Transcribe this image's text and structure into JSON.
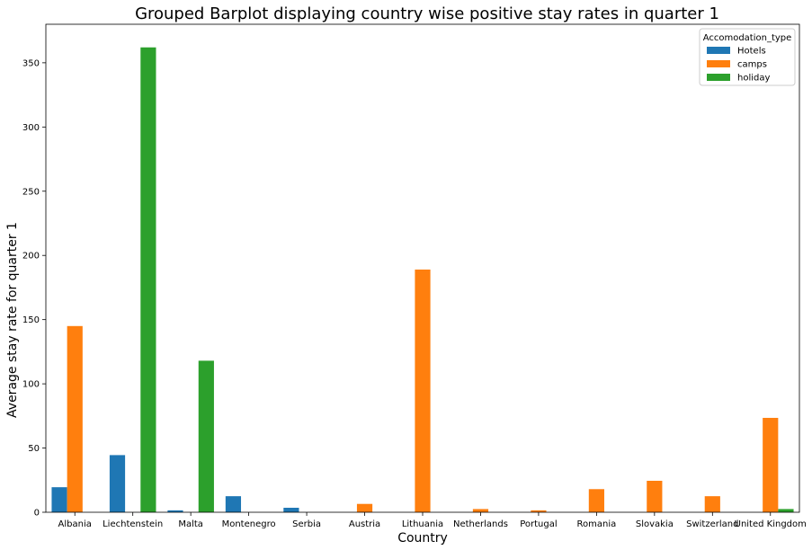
{
  "chart_data": {
    "type": "bar",
    "title": "Grouped Barplot displaying country wise positive stay rates in quarter 1",
    "xlabel": "Country",
    "ylabel": "Average stay rate for quarter 1",
    "ylim": [
      0,
      380
    ],
    "yticks": [
      0,
      50,
      100,
      150,
      200,
      250,
      300,
      350
    ],
    "grid": false,
    "legend": {
      "title": "Accomodation_type",
      "placement": "top-right"
    },
    "categories": [
      "Albania",
      "Liechtenstein",
      "Malta",
      "Montenegro",
      "Serbia",
      "Austria",
      "Lithuania",
      "Netherlands",
      "Portugal",
      "Romania",
      "Slovakia",
      "Switzerland",
      "United Kingdom"
    ],
    "series": [
      {
        "name": "Hotels",
        "color": "#1f77b4",
        "values": [
          19.5,
          44.5,
          1.5,
          12.5,
          3.5,
          null,
          null,
          null,
          null,
          null,
          null,
          null,
          null
        ]
      },
      {
        "name": "camps",
        "color": "#ff7f0e",
        "values": [
          145,
          null,
          null,
          null,
          null,
          6.5,
          189,
          2.5,
          1.5,
          18,
          24.5,
          12.5,
          73.5
        ]
      },
      {
        "name": "holiday",
        "color": "#2ca02c",
        "values": [
          null,
          362,
          118,
          null,
          null,
          null,
          null,
          null,
          null,
          null,
          null,
          null,
          2.5
        ]
      }
    ]
  }
}
